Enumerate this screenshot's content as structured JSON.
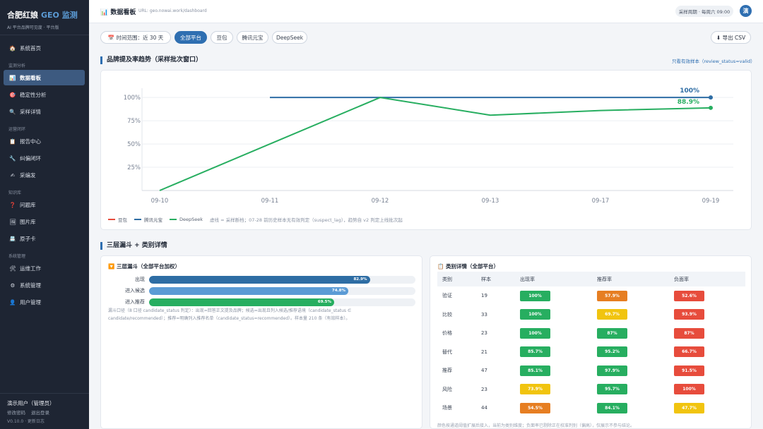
{
  "sidebar": {
    "brand": "合肥红娘",
    "brand_accent": "GEO 监测",
    "subtitle": "AI 平台品牌可见度 · 平台版",
    "home": {
      "icon": "house-icon",
      "label": "系统首页"
    },
    "sections": [
      {
        "title": "监测分析",
        "items": [
          {
            "icon": "bar-chart-icon",
            "label": "数据看板",
            "active": true
          },
          {
            "icon": "target-icon",
            "label": "稳定性分析"
          },
          {
            "icon": "magnifier-icon",
            "label": "采样详情"
          }
        ]
      },
      {
        "title": "运营闭环",
        "items": [
          {
            "icon": "clipboard-icon",
            "label": "报告中心"
          },
          {
            "icon": "wrench-icon",
            "label": "纠偏闭环"
          },
          {
            "icon": "pen-icon",
            "label": "采编发"
          }
        ]
      },
      {
        "title": "知识库",
        "items": [
          {
            "icon": "question-icon",
            "label": "问题库"
          },
          {
            "icon": "image-icon",
            "label": "图片库"
          },
          {
            "icon": "card-icon",
            "label": "原子卡"
          }
        ]
      },
      {
        "title": "系统管理",
        "items": [
          {
            "icon": "tools-icon",
            "label": "运维工作"
          },
          {
            "icon": "gear-icon",
            "label": "系统管理"
          },
          {
            "icon": "user-icon",
            "label": "用户管理"
          }
        ]
      }
    ],
    "footer": {
      "user": "演示用户（管理员）",
      "change_password": "修改密码",
      "logout": "退出登录",
      "version": "V0.10.0 · 更新日志"
    }
  },
  "topbar": {
    "page_icon": "bar-chart-icon",
    "title": "数据看板",
    "url": "URL: geo.nowai.work/dashboard",
    "schedule": "采样周期 · 每周六 09:00",
    "avatar": "演"
  },
  "filters": {
    "time_range": "📅 时间范围：近 30 天",
    "platforms": [
      {
        "label": "全部平台",
        "active": true
      },
      {
        "label": "豆包"
      },
      {
        "label": "腾讯元宝"
      },
      {
        "label": "DeepSeek"
      }
    ],
    "export": "⬇ 导出 CSV"
  },
  "trend": {
    "title": "品牌提及率趋势（采样批次窗口）",
    "link": "只看有效样本（review_status=valid）",
    "note": "虚线 = 采样断档；07-28 前历史样本无有效判定（suspect_lag），趋势自 v2 判定上线批次起"
  },
  "chart_data": {
    "type": "line",
    "x": [
      "09-10",
      "09-11",
      "09-12",
      "09-13",
      "09-17",
      "09-19"
    ],
    "y_ticks": [
      "25%",
      "50%",
      "75%",
      "100%"
    ],
    "ylim": [
      0,
      1.1
    ],
    "grid": true,
    "legend_position": "bottom-left",
    "series": [
      {
        "name": "豆包",
        "color": "#e74c3c",
        "values": [
          null,
          null,
          null,
          null,
          null,
          null
        ]
      },
      {
        "name": "腾讯元宝",
        "color": "#2e6da4",
        "values": [
          null,
          1.0,
          1.0,
          1.0,
          1.0,
          1.0
        ]
      },
      {
        "name": "DeepSeek",
        "color": "#27ae60",
        "values": [
          0.0,
          0.5,
          1.0,
          0.81,
          0.86,
          0.889
        ]
      }
    ],
    "end_labels": [
      {
        "series": "腾讯元宝",
        "text": "100%"
      },
      {
        "series": "DeepSeek",
        "text": "88.9%"
      }
    ]
  },
  "section2_title": "三层漏斗 + 类别详情",
  "funnel": {
    "title": "🔽 三层漏斗（全部平台加权）",
    "rows": [
      {
        "label": "出现",
        "value": 0.829,
        "text": "82.9%",
        "color": "#2e6da4"
      },
      {
        "label": "进入候选",
        "value": 0.748,
        "text": "74.8%",
        "color": "#5b9bd5"
      },
      {
        "label": "进入推荐",
        "value": 0.695,
        "text": "69.5%",
        "color": "#27ae60"
      }
    ],
    "note": "漏斗口径（8 口径 candidate_status 判定）：出现=回答正文提及品牌；候选=出现且列入候选/推荐语境（candidate_status ∈ candidate/recommended）；推荐=明确列入推荐名单（candidate_status=recommended）。样本量 210 条（有效样本）。"
  },
  "category": {
    "title": "📋 类别详情（全部平台）",
    "headers": [
      "类别",
      "样本",
      "出现率",
      "推荐率",
      "负面率"
    ],
    "rows": [
      {
        "cat": "验证",
        "n": "19",
        "appear": {
          "text": "100%",
          "color": "#27ae60"
        },
        "rec": {
          "text": "57.9%",
          "color": "#e67e22"
        },
        "neg": {
          "text": "52.6%",
          "color": "#e74c3c"
        }
      },
      {
        "cat": "比较",
        "n": "33",
        "appear": {
          "text": "100%",
          "color": "#27ae60"
        },
        "rec": {
          "text": "69.7%",
          "color": "#f1c40f"
        },
        "neg": {
          "text": "93.9%",
          "color": "#e74c3c"
        }
      },
      {
        "cat": "价格",
        "n": "23",
        "appear": {
          "text": "100%",
          "color": "#27ae60"
        },
        "rec": {
          "text": "87%",
          "color": "#27ae60"
        },
        "neg": {
          "text": "87%",
          "color": "#e74c3c"
        }
      },
      {
        "cat": "替代",
        "n": "21",
        "appear": {
          "text": "85.7%",
          "color": "#27ae60"
        },
        "rec": {
          "text": "95.2%",
          "color": "#27ae60"
        },
        "neg": {
          "text": "66.7%",
          "color": "#e74c3c"
        }
      },
      {
        "cat": "推荐",
        "n": "47",
        "appear": {
          "text": "85.1%",
          "color": "#27ae60"
        },
        "rec": {
          "text": "97.9%",
          "color": "#27ae60"
        },
        "neg": {
          "text": "91.5%",
          "color": "#e74c3c"
        }
      },
      {
        "cat": "风险",
        "n": "23",
        "appear": {
          "text": "73.9%",
          "color": "#f1c40f"
        },
        "rec": {
          "text": "95.7%",
          "color": "#27ae60"
        },
        "neg": {
          "text": "100%",
          "color": "#e74c3c"
        }
      },
      {
        "cat": "场景",
        "n": "44",
        "appear": {
          "text": "54.5%",
          "color": "#e67e22"
        },
        "rec": {
          "text": "84.1%",
          "color": "#27ae60"
        },
        "neg": {
          "text": "47.7%",
          "color": "#f1c40f"
        }
      }
    ],
    "footnote": "颜色按通道阈值扩展后接入，当前为类别维度；负面率已剔除正在校准判别（偏高），仅展示不参与结论。"
  }
}
